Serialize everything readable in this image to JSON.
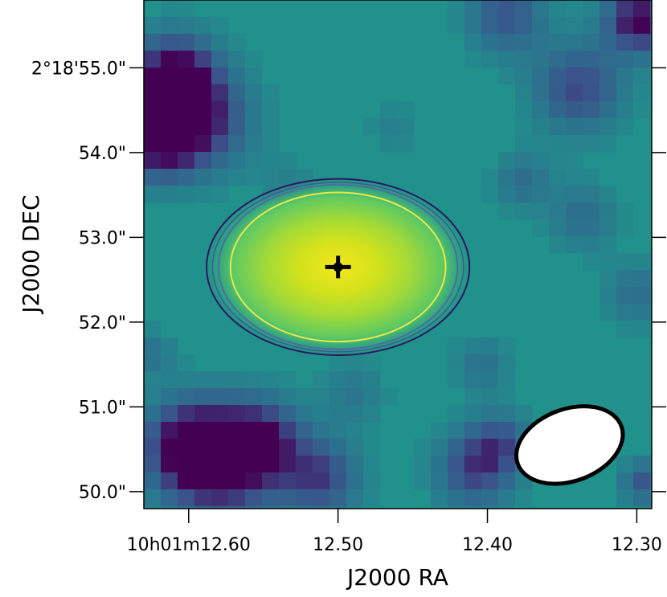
{
  "chart_data": {
    "type": "heatmap",
    "title": "",
    "xlabel": "J2000 RA",
    "ylabel": "J2000 DEC",
    "colormap": "viridis",
    "colors": {
      "low": "#440154",
      "mid": "#21918c",
      "high": "#fde725",
      "contour_outer": "#2b1a5e",
      "contour_middle": "#4a6fa0",
      "contour_inner": "#e8e84a",
      "marker": "#000000",
      "beam_fill": "#ffffff",
      "beam_edge": "#000000"
    },
    "x_axis": {
      "units": "seconds of RA (10h01m)",
      "range": [
        12.63,
        12.29
      ],
      "ticks": [
        {
          "value": 12.6,
          "label": "10h01m12.60"
        },
        {
          "value": 12.5,
          "label": "12.50"
        },
        {
          "value": 12.4,
          "label": "12.40"
        },
        {
          "value": 12.3,
          "label": "12.30"
        }
      ]
    },
    "y_axis": {
      "units": "arcsec of DEC (2°18')",
      "range": [
        49.8,
        55.8
      ],
      "ticks": [
        {
          "value": 55.0,
          "label": "2°18'55.0\""
        },
        {
          "value": 54.0,
          "label": "54.0\""
        },
        {
          "value": 53.0,
          "label": "53.0\""
        },
        {
          "value": 52.0,
          "label": "52.0\""
        },
        {
          "value": 51.0,
          "label": "51.0\""
        },
        {
          "value": 50.0,
          "label": "50.0\""
        }
      ]
    },
    "source": {
      "ra": 12.5,
      "dec": 52.65
    },
    "contours": [
      {
        "level": "outer",
        "ra_half_width": 0.088,
        "dec_half_height": 1.04
      },
      {
        "level": "middle",
        "ra_half_width": 0.08,
        "dec_half_height": 0.97
      },
      {
        "level": "inner",
        "ra_half_width": 0.072,
        "dec_half_height": 0.88
      }
    ],
    "beam": {
      "ra": 12.345,
      "dec": 50.55,
      "major_arcsec": 1.3,
      "minor_arcsec": 0.85,
      "pa_deg": -20
    }
  }
}
